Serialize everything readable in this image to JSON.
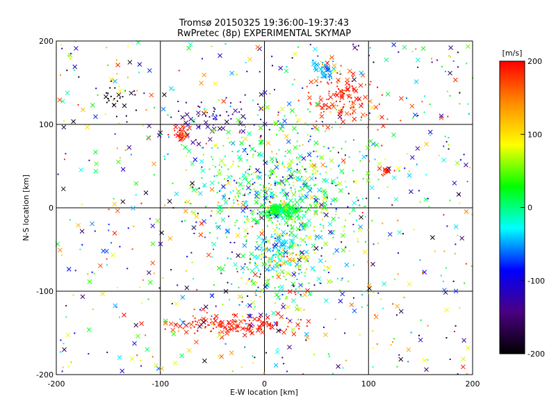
{
  "chart_data": {
    "type": "scatter",
    "title": "Tromsø 20150325 19:36:00–19:37:43",
    "subtitle": "RwPretec (8p) EXPERIMENTAL SKYMAP",
    "xlabel": "E-W location [km]",
    "ylabel": "N-S location [km]",
    "xlim": [
      -200,
      200
    ],
    "ylim": [
      -200,
      200
    ],
    "xticks": [
      -200,
      -100,
      0,
      100,
      200
    ],
    "yticks": [
      -200,
      -100,
      0,
      100,
      200
    ],
    "x_tick_labels": [
      "-200",
      "-100",
      "0",
      "100",
      "200"
    ],
    "y_tick_labels": [
      "-200",
      "-100",
      "0",
      "100",
      "200"
    ],
    "grid": true,
    "colorbar": {
      "label": "[m/s]",
      "range": [
        -200,
        200
      ],
      "ticks": [
        -200,
        -100,
        0,
        100,
        200
      ],
      "tick_labels": [
        "-200",
        "-100",
        "0",
        "100",
        "200"
      ],
      "colormap": [
        "#000000",
        "#4b0082",
        "#0000ff",
        "#00ffff",
        "#00ff00",
        "#ffff00",
        "#ff8c00",
        "#ff0000"
      ]
    },
    "markers": {
      "strong_echo": "cross",
      "weak_echo": "dot"
    },
    "clusters": [
      {
        "name": "north-west",
        "center": [
          -140,
          132
        ],
        "spread": [
          10,
          8
        ],
        "velocity": -195,
        "vspread": 8,
        "count": 22
      },
      {
        "name": "north-west-blue",
        "center": [
          -50,
          105
        ],
        "spread": [
          22,
          12
        ],
        "velocity": -140,
        "vspread": 20,
        "count": 70
      },
      {
        "name": "north-west-red",
        "center": [
          -80,
          90
        ],
        "spread": [
          5,
          5
        ],
        "velocity": 190,
        "vspread": 10,
        "count": 35
      },
      {
        "name": "north-east-red",
        "center": [
          75,
          130
        ],
        "spread": [
          18,
          18
        ],
        "velocity": 185,
        "vspread": 15,
        "count": 140
      },
      {
        "name": "north-east-cyan",
        "center": [
          58,
          165
        ],
        "spread": [
          6,
          6
        ],
        "velocity": -45,
        "vspread": 10,
        "count": 50
      },
      {
        "name": "east-red",
        "center": [
          118,
          45
        ],
        "spread": [
          4,
          3
        ],
        "velocity": 190,
        "vspread": 10,
        "count": 20
      },
      {
        "name": "center",
        "center": [
          15,
          -3
        ],
        "spread": [
          10,
          4
        ],
        "velocity": 15,
        "vspread": 12,
        "count": 200
      },
      {
        "name": "center-mixed",
        "center": [
          15,
          25
        ],
        "spread": [
          40,
          40
        ],
        "velocity": 10,
        "vspread": 60,
        "count": 600
      },
      {
        "name": "south-central",
        "center": [
          15,
          -70
        ],
        "spread": [
          25,
          25
        ],
        "velocity": 20,
        "vspread": 80,
        "count": 260
      },
      {
        "name": "south-cyan",
        "center": [
          15,
          -45
        ],
        "spread": [
          7,
          8
        ],
        "velocity": -40,
        "vspread": 10,
        "count": 40
      },
      {
        "name": "south-red-arc",
        "center": [
          -30,
          -140
        ],
        "spread": [
          30,
          6
        ],
        "velocity": 190,
        "vspread": 10,
        "count": 160
      },
      {
        "name": "background",
        "center": [
          0,
          0
        ],
        "spread": [
          200,
          200
        ],
        "velocity": 0,
        "vspread": 200,
        "count": 700,
        "uniform": true
      }
    ]
  }
}
